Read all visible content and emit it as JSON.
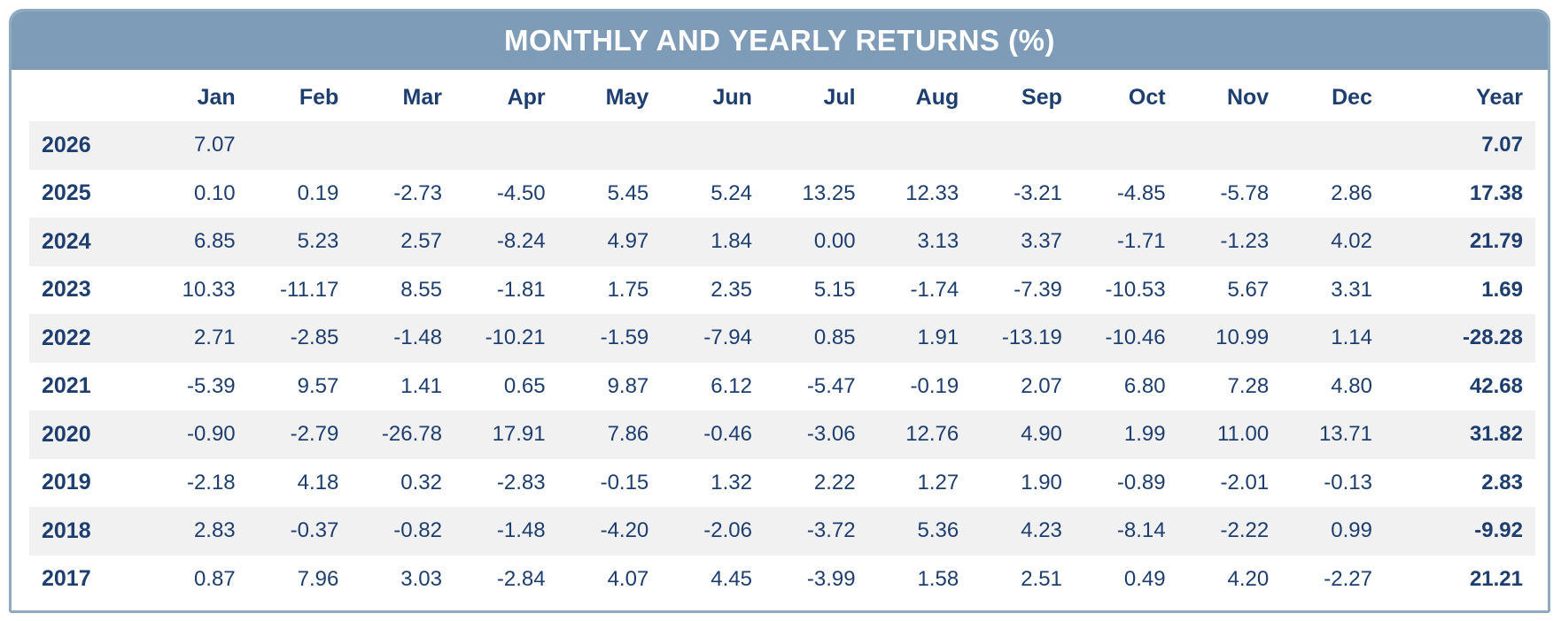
{
  "colors": {
    "header_bg": "#7e9cb8",
    "border": "#8ea9c1",
    "text_navy": "#1d3e6f",
    "stripe_bg": "#f1f1f1",
    "title_text": "#ffffff"
  },
  "chart_data": {
    "type": "table",
    "title": "MONTHLY AND YEARLY RETURNS (%)",
    "columns": [
      "Jan",
      "Feb",
      "Mar",
      "Apr",
      "May",
      "Jun",
      "Jul",
      "Aug",
      "Sep",
      "Oct",
      "Nov",
      "Dec",
      "Year"
    ],
    "rows": [
      {
        "year": "2026",
        "values": [
          "7.07",
          "",
          "",
          "",
          "",
          "",
          "",
          "",
          "",
          "",
          "",
          ""
        ],
        "year_total": "7.07"
      },
      {
        "year": "2025",
        "values": [
          "0.10",
          "0.19",
          "-2.73",
          "-4.50",
          "5.45",
          "5.24",
          "13.25",
          "12.33",
          "-3.21",
          "-4.85",
          "-5.78",
          "2.86"
        ],
        "year_total": "17.38"
      },
      {
        "year": "2024",
        "values": [
          "6.85",
          "5.23",
          "2.57",
          "-8.24",
          "4.97",
          "1.84",
          "0.00",
          "3.13",
          "3.37",
          "-1.71",
          "-1.23",
          "4.02"
        ],
        "year_total": "21.79"
      },
      {
        "year": "2023",
        "values": [
          "10.33",
          "-11.17",
          "8.55",
          "-1.81",
          "1.75",
          "2.35",
          "5.15",
          "-1.74",
          "-7.39",
          "-10.53",
          "5.67",
          "3.31"
        ],
        "year_total": "1.69"
      },
      {
        "year": "2022",
        "values": [
          "2.71",
          "-2.85",
          "-1.48",
          "-10.21",
          "-1.59",
          "-7.94",
          "0.85",
          "1.91",
          "-13.19",
          "-10.46",
          "10.99",
          "1.14"
        ],
        "year_total": "-28.28"
      },
      {
        "year": "2021",
        "values": [
          "-5.39",
          "9.57",
          "1.41",
          "0.65",
          "9.87",
          "6.12",
          "-5.47",
          "-0.19",
          "2.07",
          "6.80",
          "7.28",
          "4.80"
        ],
        "year_total": "42.68"
      },
      {
        "year": "2020",
        "values": [
          "-0.90",
          "-2.79",
          "-26.78",
          "17.91",
          "7.86",
          "-0.46",
          "-3.06",
          "12.76",
          "4.90",
          "1.99",
          "11.00",
          "13.71"
        ],
        "year_total": "31.82"
      },
      {
        "year": "2019",
        "values": [
          "-2.18",
          "4.18",
          "0.32",
          "-2.83",
          "-0.15",
          "1.32",
          "2.22",
          "1.27",
          "1.90",
          "-0.89",
          "-2.01",
          "-0.13"
        ],
        "year_total": "2.83"
      },
      {
        "year": "2018",
        "values": [
          "2.83",
          "-0.37",
          "-0.82",
          "-1.48",
          "-4.20",
          "-2.06",
          "-3.72",
          "5.36",
          "4.23",
          "-8.14",
          "-2.22",
          "0.99"
        ],
        "year_total": "-9.92"
      },
      {
        "year": "2017",
        "values": [
          "0.87",
          "7.96",
          "3.03",
          "-2.84",
          "4.07",
          "4.45",
          "-3.99",
          "1.58",
          "2.51",
          "0.49",
          "4.20",
          "-2.27"
        ],
        "year_total": "21.21"
      }
    ],
    "layout": {
      "legend": "none",
      "striped_rows": "alternating starting with first data row (2026)",
      "year_column_bold": true
    }
  }
}
